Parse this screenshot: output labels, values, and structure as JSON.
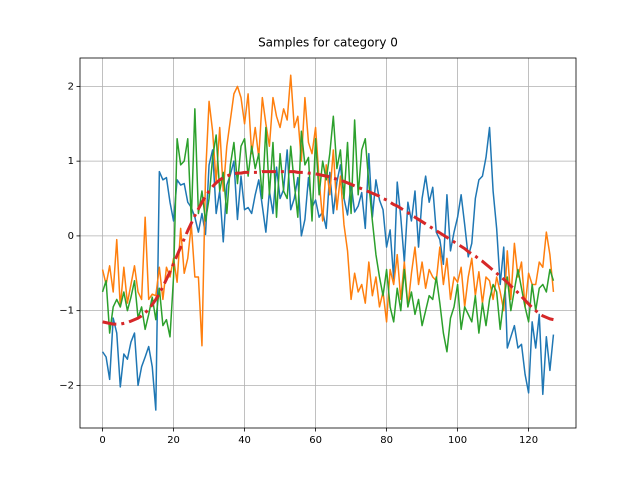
{
  "chart_data": {
    "type": "line",
    "title": "Samples for category 0",
    "x": [
      0,
      1,
      2,
      3,
      4,
      5,
      6,
      7,
      8,
      9,
      10,
      11,
      12,
      13,
      14,
      15,
      16,
      17,
      18,
      19,
      20,
      21,
      22,
      23,
      24,
      25,
      26,
      27,
      28,
      29,
      30,
      31,
      32,
      33,
      34,
      35,
      36,
      37,
      38,
      39,
      40,
      41,
      42,
      43,
      44,
      45,
      46,
      47,
      48,
      49,
      50,
      51,
      52,
      53,
      54,
      55,
      56,
      57,
      58,
      59,
      60,
      61,
      62,
      63,
      64,
      65,
      66,
      67,
      68,
      69,
      70,
      71,
      72,
      73,
      74,
      75,
      76,
      77,
      78,
      79,
      80,
      81,
      82,
      83,
      84,
      85,
      86,
      87,
      88,
      89,
      90,
      91,
      92,
      93,
      94,
      95,
      96,
      97,
      98,
      99,
      100,
      101,
      102,
      103,
      104,
      105,
      106,
      107,
      108,
      109,
      110,
      111,
      112,
      113,
      114,
      115,
      116,
      117,
      118,
      119,
      120,
      121,
      122,
      123,
      124,
      125,
      126,
      127
    ],
    "series": [
      {
        "color": "#1f77b4",
        "width": 1.5,
        "dash": false,
        "values": [
          -1.55,
          -1.62,
          -1.92,
          -1.1,
          -1.3,
          -2.02,
          -1.58,
          -1.65,
          -1.42,
          -1.3,
          -2.0,
          -1.75,
          -1.62,
          -1.48,
          -1.75,
          -2.33,
          0.86,
          0.75,
          0.78,
          0.45,
          0.2,
          0.75,
          0.68,
          0.7,
          0.45,
          0.38,
          0.25,
          0.05,
          0.3,
          0.02,
          0.95,
          1.15,
          0.3,
          0.6,
          -0.08,
          0.68,
          0.82,
          1.0,
          0.22,
          0.8,
          0.35,
          0.38,
          0.3,
          0.55,
          0.75,
          0.4,
          0.05,
          0.6,
          0.3,
          0.92,
          0.5,
          0.62,
          1.15,
          0.35,
          0.5,
          0.78,
          0.0,
          0.22,
          0.78,
          0.38,
          0.48,
          0.25,
          0.32,
          0.1,
          0.85,
          0.3,
          0.72,
          0.95,
          0.5,
          0.28,
          0.7,
          0.32,
          0.4,
          0.58,
          0.1,
          1.1,
          0.25,
          0.75,
          0.48,
          0.35,
          -0.15,
          0.08,
          -0.58,
          0.72,
          0.25,
          -0.35,
          0.45,
          0.2,
          0.6,
          -0.15,
          0.5,
          0.8,
          0.45,
          0.65,
          0.05,
          -0.05,
          -0.38,
          0.55,
          -0.2,
          0.05,
          0.25,
          0.55,
          0.15,
          -0.28,
          -0.1,
          0.5,
          0.75,
          0.8,
          1.05,
          1.45,
          0.6,
          0.1,
          -0.65,
          -0.15,
          -1.5,
          -1.35,
          -1.2,
          -1.5,
          -1.45,
          -1.85,
          -2.1,
          -1.15,
          -1.5,
          -1.05,
          -2.12,
          -1.35,
          -1.8,
          -1.32
        ]
      },
      {
        "color": "#ff7f0e",
        "width": 1.5,
        "dash": false,
        "values": [
          -0.45,
          -0.65,
          -0.4,
          -0.75,
          -0.05,
          -0.95,
          -0.42,
          -0.9,
          -0.65,
          -0.4,
          -0.75,
          -0.85,
          0.25,
          -0.85,
          -0.78,
          -0.8,
          -0.42,
          -0.85,
          -0.42,
          -0.55,
          -0.3,
          -0.62,
          0.1,
          -0.5,
          -0.3,
          0.15,
          -0.55,
          -0.55,
          -1.47,
          0.8,
          1.8,
          1.4,
          0.72,
          1.45,
          0.6,
          1.2,
          1.55,
          1.9,
          2.0,
          1.85,
          1.5,
          1.9,
          1.1,
          1.45,
          1.05,
          1.85,
          1.5,
          1.2,
          1.85,
          1.6,
          1.45,
          1.7,
          1.55,
          2.15,
          1.45,
          1.6,
          1.0,
          1.85,
          1.25,
          1.1,
          1.45,
          0.75,
          0.2,
          0.95,
          0.55,
          1.15,
          0.35,
          0.8,
          0.15,
          -0.2,
          -0.85,
          -0.5,
          -0.75,
          -0.65,
          -0.9,
          -0.35,
          -0.8,
          -0.55,
          -0.95,
          -0.75,
          -1.15,
          -0.45,
          -0.65,
          -0.25,
          -0.85,
          -0.35,
          -0.95,
          -0.5,
          -0.15,
          -0.65,
          -0.35,
          -0.7,
          -0.45,
          -0.55,
          -0.6,
          -0.15,
          -0.65,
          -0.3,
          -0.85,
          -0.55,
          -0.62,
          -0.42,
          -0.95,
          -0.55,
          -0.3,
          -0.8,
          -0.48,
          -0.9,
          -0.55,
          -0.6,
          -0.85,
          -0.55,
          -0.75,
          -1.0,
          -0.2,
          -0.85,
          -0.1,
          -0.55,
          -0.35,
          -0.95,
          -0.5,
          -0.65,
          -0.65,
          -0.35,
          -0.42,
          0.05,
          -0.25,
          -0.75
        ]
      },
      {
        "color": "#2ca02c",
        "width": 1.5,
        "dash": false,
        "values": [
          -0.75,
          -0.6,
          -1.3,
          -0.95,
          -0.85,
          -0.95,
          -0.75,
          -1.0,
          -0.82,
          -0.6,
          -1.1,
          -0.95,
          -1.25,
          -1.05,
          -0.82,
          -1.12,
          -0.7,
          -1.2,
          -1.12,
          -1.35,
          -0.55,
          1.3,
          0.95,
          1.0,
          1.3,
          0.2,
          1.7,
          0.3,
          0.6,
          0.2,
          0.5,
          1.05,
          1.35,
          0.6,
          0.85,
          0.3,
          0.95,
          1.25,
          0.7,
          1.2,
          1.3,
          0.8,
          1.2,
          0.9,
          1.1,
          0.5,
          1.45,
          0.55,
          1.25,
          0.25,
          1.1,
          0.6,
          0.5,
          1.2,
          0.7,
          0.25,
          1.4,
          0.95,
          1.05,
          0.2,
          1.3,
          0.55,
          1.0,
          0.75,
          1.1,
          1.6,
          0.9,
          1.15,
          0.5,
          1.25,
          0.3,
          1.55,
          0.55,
          1.15,
          1.3,
          0.7,
          0.2,
          -0.25,
          -0.55,
          -0.8,
          -0.45,
          -0.95,
          -1.15,
          -0.7,
          -1.0,
          -0.45,
          -0.95,
          -0.75,
          -1.05,
          -0.85,
          -1.2,
          -1.0,
          -0.8,
          -0.85,
          -0.55,
          -0.9,
          -1.3,
          -1.55,
          -1.1,
          -0.95,
          -0.65,
          -1.25,
          -0.95,
          -1.05,
          -1.15,
          -0.8,
          -1.3,
          -0.9,
          -1.2,
          -0.85,
          -0.65,
          -0.75,
          -1.25,
          -0.85,
          -0.55,
          -1.0,
          -0.72,
          -0.45,
          -0.7,
          -0.95,
          -1.15,
          -0.65,
          -1.0,
          -0.7,
          -0.65,
          -0.75,
          -0.45,
          -0.6
        ]
      },
      {
        "color": "#d62728",
        "width": 3,
        "dash": true,
        "values": [
          -1.15,
          -1.16,
          -1.17,
          -1.18,
          -1.18,
          -1.18,
          -1.17,
          -1.16,
          -1.14,
          -1.12,
          -1.1,
          -1.07,
          -1.03,
          -0.98,
          -0.92,
          -0.85,
          -0.77,
          -0.68,
          -0.58,
          -0.48,
          -0.37,
          -0.26,
          -0.15,
          -0.04,
          0.07,
          0.17,
          0.27,
          0.36,
          0.45,
          0.53,
          0.6,
          0.66,
          0.71,
          0.75,
          0.78,
          0.8,
          0.82,
          0.83,
          0.84,
          0.84,
          0.85,
          0.85,
          0.85,
          0.85,
          0.85,
          0.86,
          0.86,
          0.86,
          0.86,
          0.86,
          0.86,
          0.86,
          0.86,
          0.86,
          0.86,
          0.85,
          0.85,
          0.85,
          0.84,
          0.84,
          0.83,
          0.82,
          0.81,
          0.8,
          0.79,
          0.77,
          0.76,
          0.74,
          0.73,
          0.71,
          0.69,
          0.67,
          0.65,
          0.63,
          0.61,
          0.59,
          0.57,
          0.55,
          0.53,
          0.5,
          0.48,
          0.45,
          0.42,
          0.4,
          0.37,
          0.34,
          0.31,
          0.28,
          0.25,
          0.22,
          0.19,
          0.16,
          0.13,
          0.1,
          0.07,
          0.04,
          0.01,
          -0.02,
          -0.05,
          -0.08,
          -0.11,
          -0.14,
          -0.17,
          -0.21,
          -0.24,
          -0.27,
          -0.31,
          -0.34,
          -0.38,
          -0.42,
          -0.46,
          -0.5,
          -0.54,
          -0.58,
          -0.62,
          -0.67,
          -0.71,
          -0.76,
          -0.81,
          -0.86,
          -0.91,
          -0.96,
          -1.0,
          -1.04,
          -1.07,
          -1.09,
          -1.11,
          -1.12
        ]
      }
    ],
    "xlim": [
      -6.35,
      133.35
    ],
    "ylim": [
      -2.57,
      2.38
    ],
    "xticks": [
      0,
      20,
      40,
      60,
      80,
      100,
      120
    ],
    "yticks": [
      {
        "value": -2,
        "label": "−2"
      },
      {
        "value": -1,
        "label": "−1"
      },
      0,
      1,
      2
    ],
    "grid": true
  }
}
